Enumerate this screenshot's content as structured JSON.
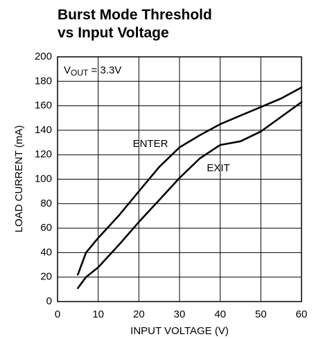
{
  "chart_data": {
    "type": "line",
    "title": [
      "Burst Mode Threshold",
      "vs Input Voltage"
    ],
    "annotation": {
      "base": "V",
      "sub": "OUT",
      "rest": " = 3.3V"
    },
    "x_label": "INPUT VOLTAGE (V)",
    "y_label": "LOAD CURRENT (mA)",
    "x": [
      5,
      7,
      10,
      15,
      20,
      25,
      30,
      35,
      40,
      45,
      50,
      55,
      60
    ],
    "series": [
      {
        "name": "ENTER",
        "color": "#000000",
        "values": [
          22,
          40,
          52,
          70,
          90,
          110,
          126,
          136,
          145,
          152,
          159,
          166,
          175
        ]
      },
      {
        "name": "EXIT",
        "color": "#000000",
        "values": [
          11,
          20,
          28,
          46,
          65,
          83,
          101,
          117,
          128,
          131,
          139,
          151,
          163
        ]
      }
    ],
    "xlim": [
      0,
      60
    ],
    "ylim": [
      0,
      200
    ],
    "xticks": [
      0,
      10,
      20,
      30,
      40,
      50,
      60
    ],
    "yticks": [
      0,
      20,
      40,
      60,
      80,
      100,
      120,
      140,
      160,
      180,
      200
    ],
    "grid": true
  }
}
